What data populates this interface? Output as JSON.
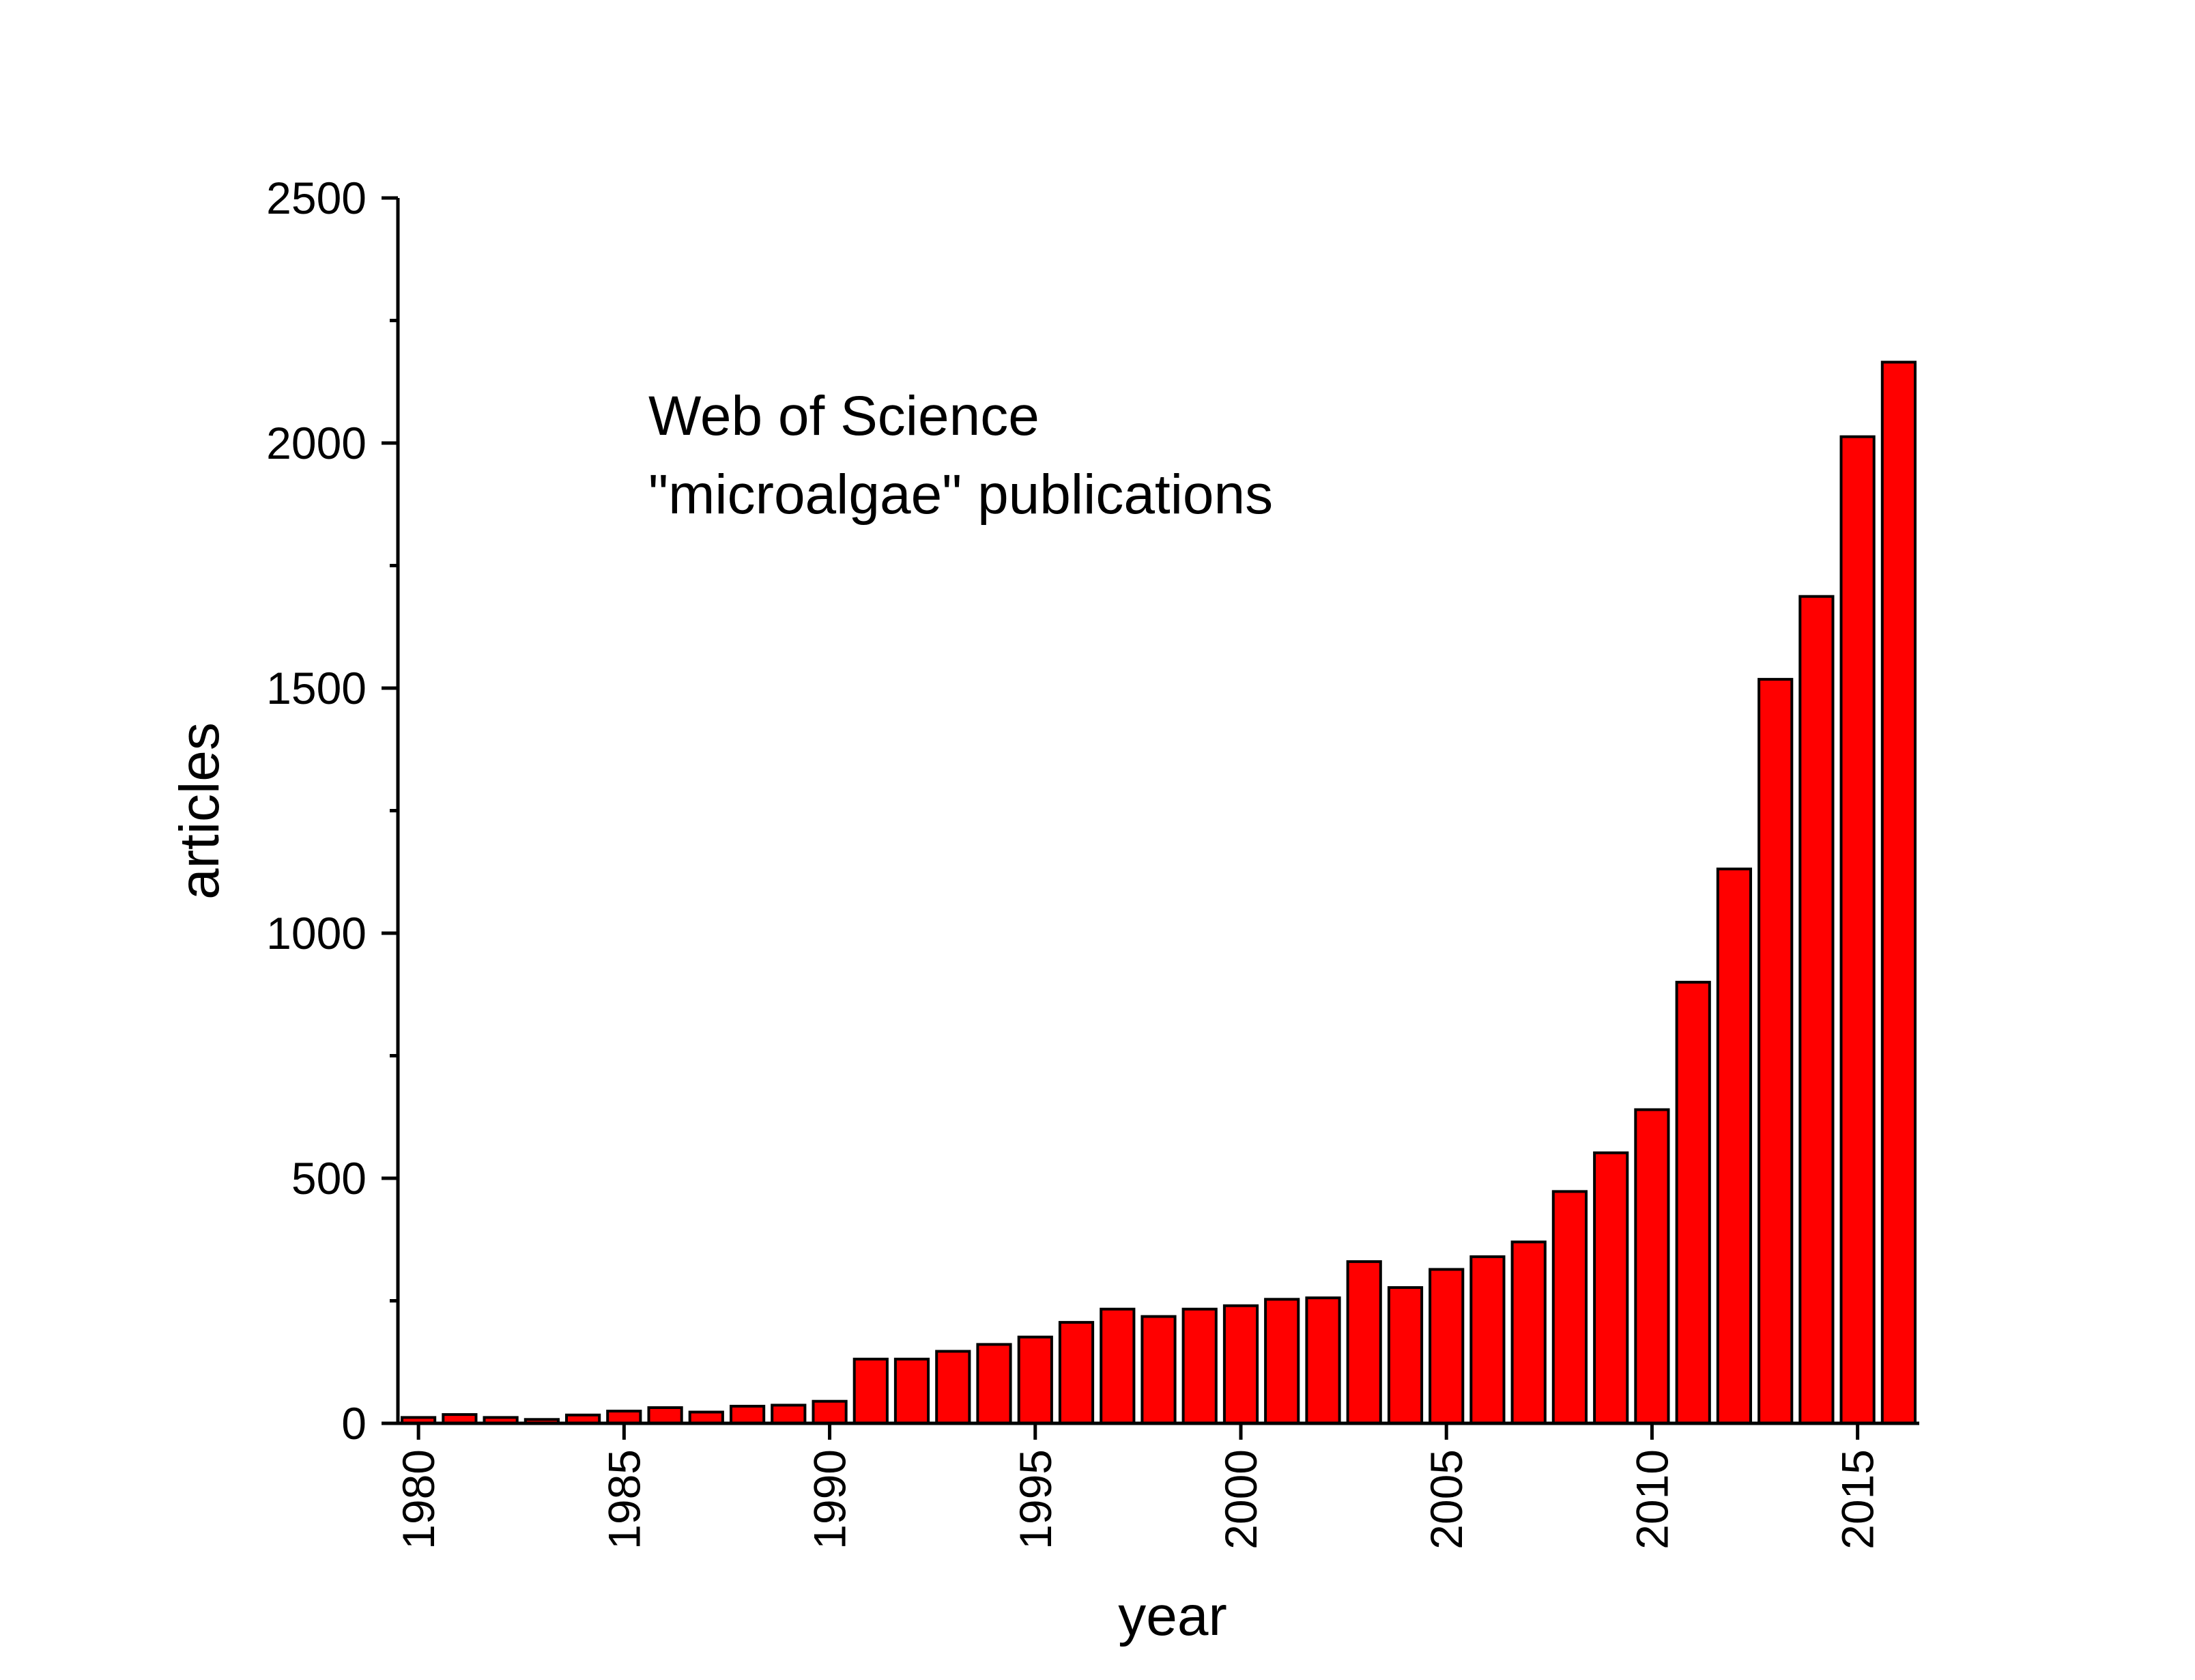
{
  "chart_data": {
    "type": "bar",
    "title": "",
    "xlabel": "year",
    "ylabel": "articles",
    "annotation": [
      "Web of Science",
      "\"microalgae\" publications"
    ],
    "ylim": [
      0,
      2500
    ],
    "xlim": [
      1979.5,
      2016.5
    ],
    "y_ticks": [
      0,
      500,
      1000,
      1500,
      2000,
      2500
    ],
    "x_ticks": [
      1980,
      1985,
      1990,
      1995,
      2000,
      2005,
      2010,
      2015
    ],
    "grid": false,
    "legend": "none",
    "bar_color": "#ff0000",
    "bar_edge_color": "#000000",
    "x": [
      1980,
      1981,
      1982,
      1983,
      1984,
      1985,
      1986,
      1987,
      1988,
      1989,
      1990,
      1991,
      1992,
      1993,
      1994,
      1995,
      1996,
      1997,
      1998,
      1999,
      2000,
      2001,
      2002,
      2003,
      2004,
      2005,
      2006,
      2007,
      2008,
      2009,
      2010,
      2011,
      2012,
      2013,
      2014,
      2015,
      2016
    ],
    "values": [
      12,
      18,
      12,
      8,
      17,
      25,
      32,
      23,
      35,
      37,
      45,
      131,
      131,
      147,
      161,
      176,
      206,
      233,
      218,
      233,
      240,
      253,
      256,
      330,
      277,
      314,
      340,
      370,
      473,
      552,
      640,
      900,
      1131,
      1518,
      1687,
      2013,
      2165
    ]
  }
}
